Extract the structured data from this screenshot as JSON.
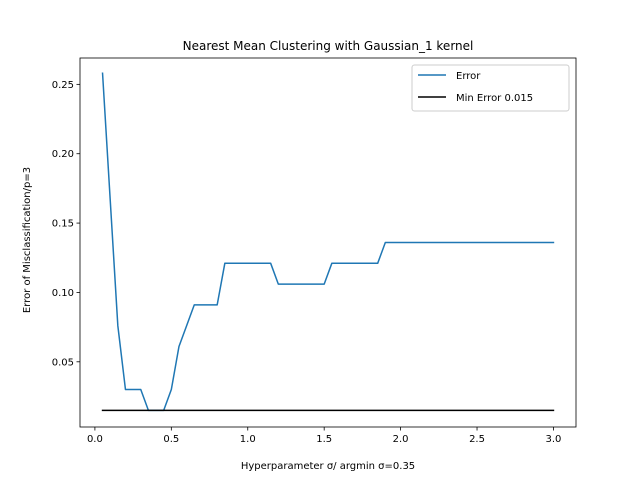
{
  "chart_data": {
    "type": "line",
    "title": "Nearest Mean Clustering with Gaussian_1 kernel",
    "xlabel": "Hyperparameter σ/ argmin σ=0.35",
    "ylabel": "Error of Misclassification/p=3",
    "xlim": [
      -0.0975,
      3.1475
    ],
    "ylim": [
      0.003,
      0.269
    ],
    "xticks": [
      0.0,
      0.5,
      1.0,
      1.5,
      2.0,
      2.5,
      3.0
    ],
    "xtick_labels": [
      "0.0",
      "0.5",
      "1.0",
      "1.5",
      "2.0",
      "2.5",
      "3.0"
    ],
    "yticks": [
      0.05,
      0.1,
      0.15,
      0.2,
      0.25
    ],
    "ytick_labels": [
      "0.05",
      "0.10",
      "0.15",
      "0.20",
      "0.25"
    ],
    "grid": false,
    "legend": {
      "placement": "top-right"
    },
    "series": [
      {
        "name": "Error",
        "color": "#1f77b4",
        "x": [
          0.05,
          0.1,
          0.15,
          0.2,
          0.25,
          0.3,
          0.35,
          0.4,
          0.45,
          0.5,
          0.55,
          0.6,
          0.65,
          0.7,
          0.75,
          0.8,
          0.85,
          0.9,
          0.95,
          1.0,
          1.05,
          1.1,
          1.15,
          1.2,
          1.25,
          1.3,
          1.35,
          1.4,
          1.45,
          1.5,
          1.55,
          1.6,
          1.65,
          1.7,
          1.75,
          1.8,
          1.85,
          1.9,
          1.95,
          2.0,
          2.5,
          3.0
        ],
        "y": [
          0.258,
          0.167,
          0.076,
          0.03,
          0.03,
          0.03,
          0.015,
          0.015,
          0.015,
          0.03,
          0.061,
          0.076,
          0.091,
          0.091,
          0.091,
          0.091,
          0.121,
          0.121,
          0.121,
          0.121,
          0.121,
          0.121,
          0.121,
          0.106,
          0.106,
          0.106,
          0.106,
          0.106,
          0.106,
          0.106,
          0.121,
          0.121,
          0.121,
          0.121,
          0.121,
          0.121,
          0.121,
          0.136,
          0.136,
          0.136,
          0.136,
          0.136
        ]
      },
      {
        "name": "Min Error 0.015",
        "color": "#000000",
        "x": [
          0.05,
          3.0
        ],
        "y": [
          0.015,
          0.015
        ]
      }
    ]
  }
}
